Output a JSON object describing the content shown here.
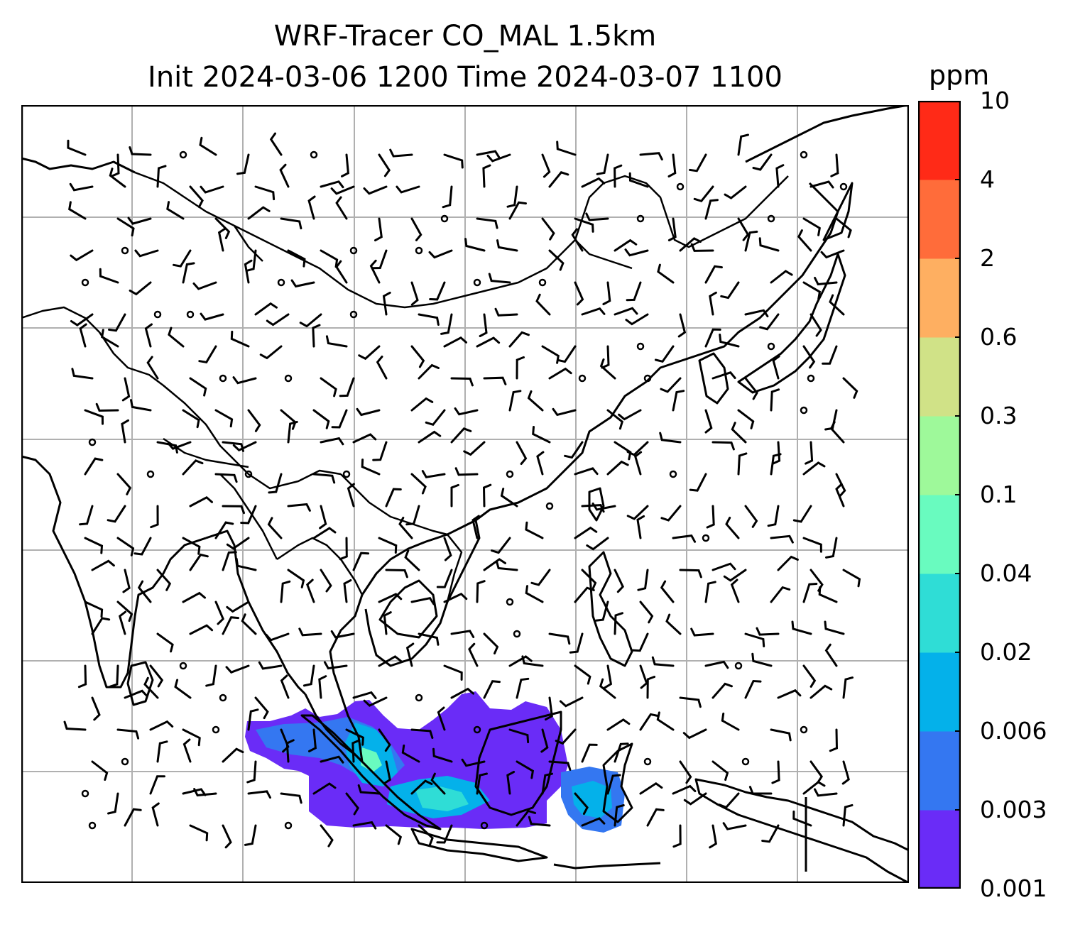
{
  "title": {
    "line1": "WRF-Tracer CO_MAL 1.5km",
    "line2": "Init 2024-03-06 1200 Time 2024-03-07 1100"
  },
  "colorbar": {
    "unit": "ppm",
    "ticks": [
      "0.001",
      "0.003",
      "0.006",
      "0.02",
      "0.04",
      "0.1",
      "0.3",
      "0.6",
      "2",
      "4",
      "10"
    ],
    "colors": [
      "#6a2cf7",
      "#3477f1",
      "#04b1ea",
      "#2fddd6",
      "#69fbbf",
      "#9ef99a",
      "#d0e287",
      "#feaf61",
      "#ff6c3a",
      "#ff2a17"
    ]
  },
  "map": {
    "region": "Southeast Asia, southern China, Indonesia",
    "grid": true,
    "tracer_colors": [
      "#6a2cf7",
      "#3477f1",
      "#04b1ea",
      "#2fddd6",
      "#69fbbf"
    ]
  }
}
